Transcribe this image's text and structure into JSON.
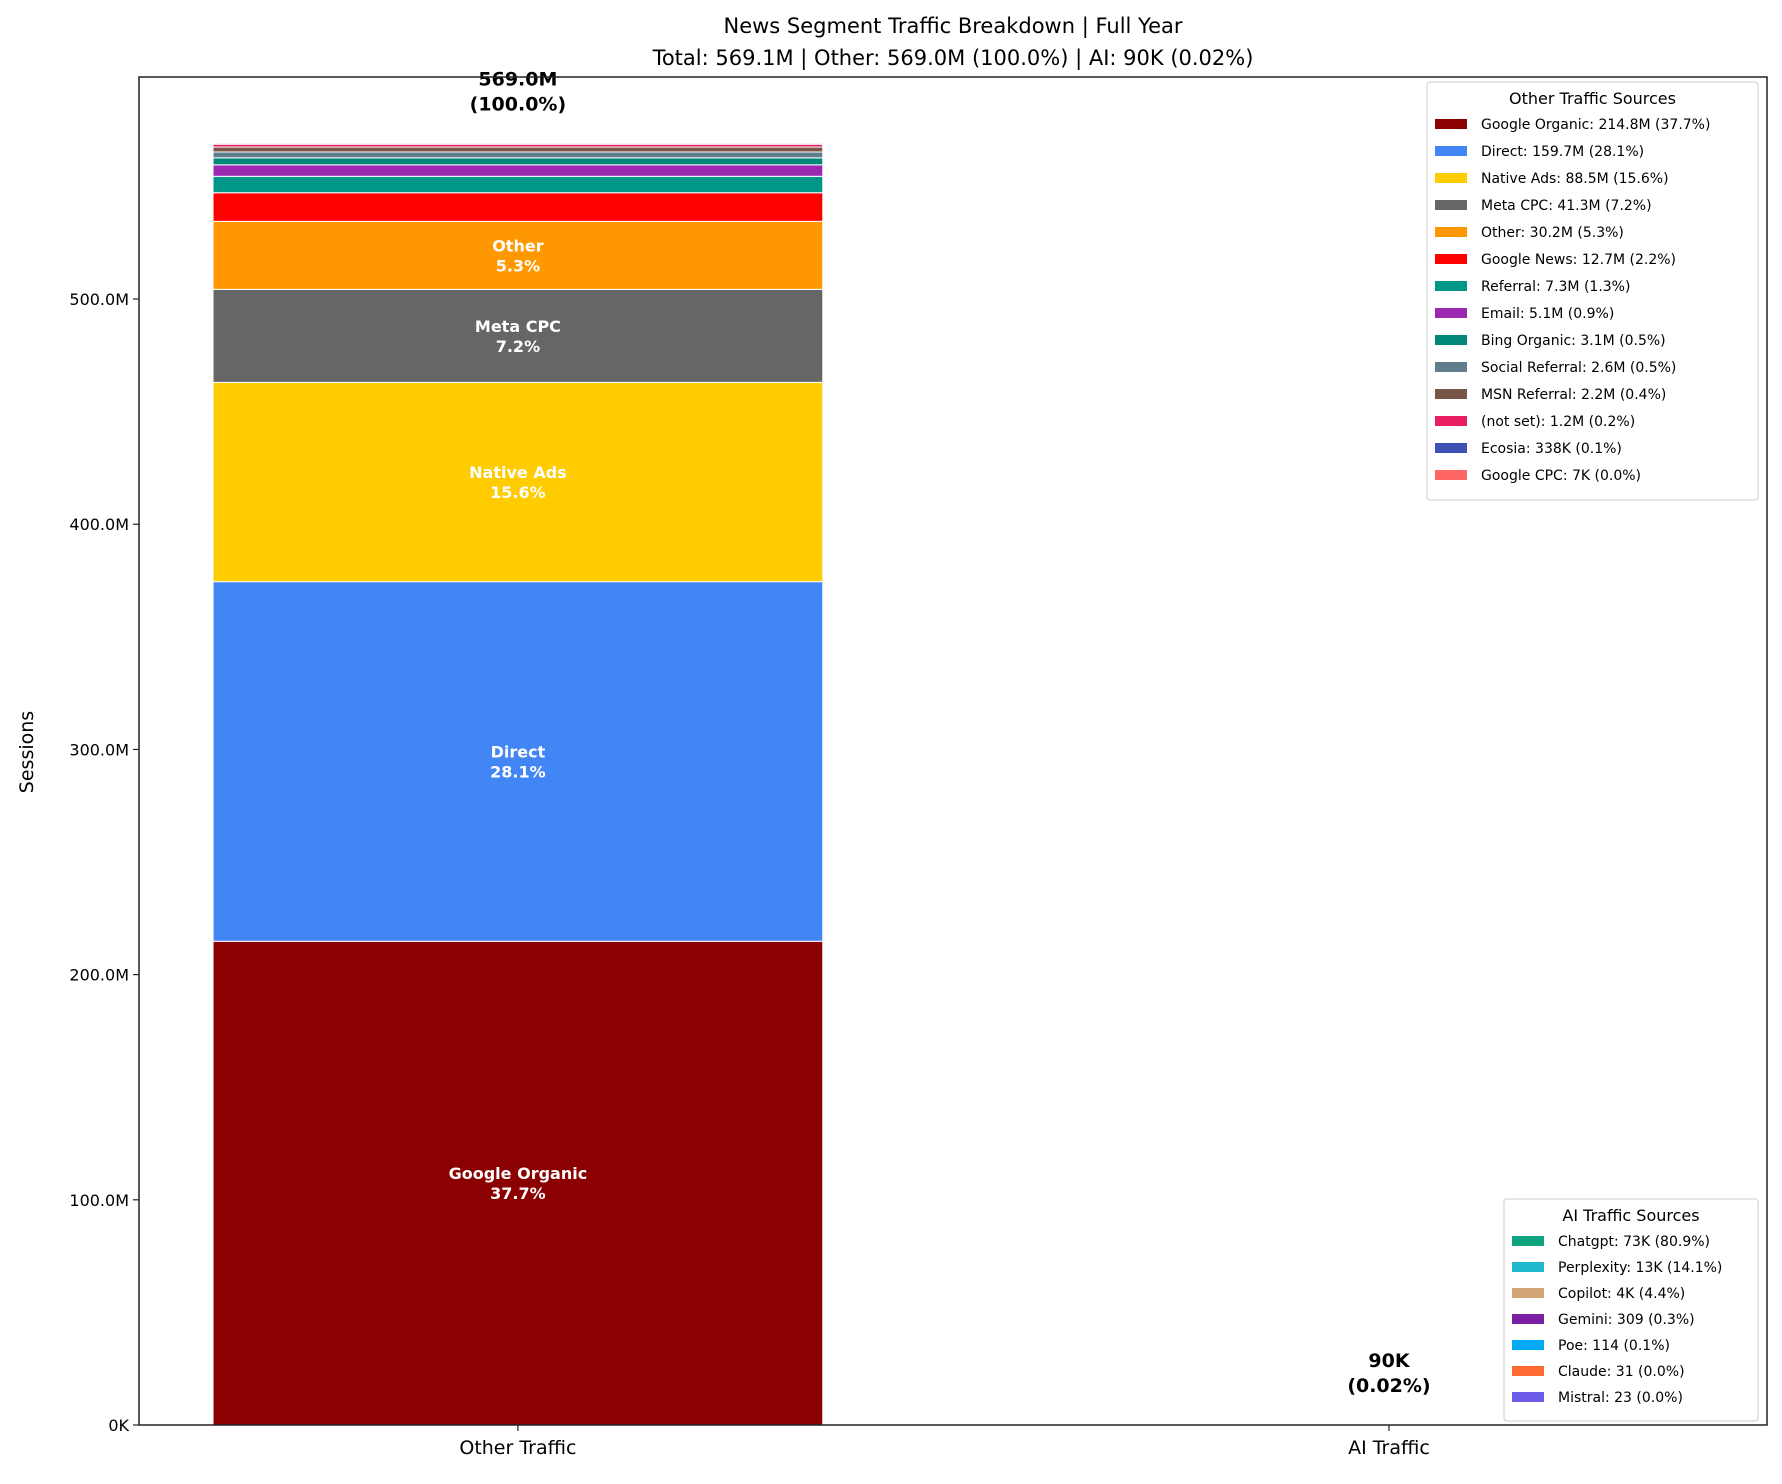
{
  "chart_data": {
    "type": "bar",
    "stacked": true,
    "title": "News Segment Traffic Breakdown | Full Year",
    "subtitle": "Total: 569.1M | Other: 569.0M (100.0%) | AI: 90K (0.02%)",
    "xlabel": "",
    "ylabel": "Sessions",
    "ylim": [
      0,
      598.6
    ],
    "yunit": "millions of sessions",
    "yticks": [
      0,
      100,
      200,
      300,
      400,
      500
    ],
    "ytick_labels": [
      "0K",
      "100.0M",
      "200.0M",
      "300.0M",
      "400.0M",
      "500.0M"
    ],
    "categories": [
      "Other Traffic",
      "AI Traffic"
    ],
    "grid": false,
    "bar_totals": [
      {
        "value_label": "569.0M",
        "pct_label": "(100.0%)"
      },
      {
        "value_label": "90K",
        "pct_label": "(0.02%)"
      }
    ],
    "other_series": [
      {
        "name": "Google Organic",
        "value": 214.8,
        "color": "#8B0000",
        "legend": "Google Organic: 214.8M (37.7%)",
        "bar_label": "Google Organic",
        "bar_pct": "37.7%"
      },
      {
        "name": "Direct",
        "value": 159.7,
        "color": "#4285F4",
        "legend": "Direct: 159.7M (28.1%)",
        "bar_label": "Direct",
        "bar_pct": "28.1%"
      },
      {
        "name": "Native Ads",
        "value": 88.5,
        "color": "#FFCC00",
        "legend": "Native Ads: 88.5M (15.6%)",
        "bar_label": "Native Ads",
        "bar_pct": "15.6%"
      },
      {
        "name": "Meta CPC",
        "value": 41.3,
        "color": "#666666",
        "legend": "Meta CPC: 41.3M (7.2%)",
        "bar_label": "Meta CPC",
        "bar_pct": "7.2%"
      },
      {
        "name": "Other",
        "value": 30.2,
        "color": "#FF9800",
        "legend": "Other: 30.2M (5.3%)",
        "bar_label": "Other",
        "bar_pct": "5.3%"
      },
      {
        "name": "Google News",
        "value": 12.7,
        "color": "#FF0000",
        "legend": "Google News: 12.7M (2.2%)"
      },
      {
        "name": "Referral",
        "value": 7.3,
        "color": "#009688",
        "legend": "Referral: 7.3M (1.3%)"
      },
      {
        "name": "Email",
        "value": 5.1,
        "color": "#9C27B0",
        "legend": "Email: 5.1M (0.9%)"
      },
      {
        "name": "Bing Organic",
        "value": 3.1,
        "color": "#00897B",
        "legend": "Bing Organic: 3.1M (0.5%)"
      },
      {
        "name": "Social Referral",
        "value": 2.6,
        "color": "#607D8B",
        "legend": "Social Referral: 2.6M (0.5%)"
      },
      {
        "name": "MSN Referral",
        "value": 2.2,
        "color": "#795548",
        "legend": "MSN Referral: 2.2M (0.4%)"
      },
      {
        "name": "(not set)",
        "value": 1.2,
        "color": "#E91E63",
        "legend": "(not set): 1.2M (0.2%)"
      },
      {
        "name": "Ecosia",
        "value": 0.338,
        "color": "#3F51B5",
        "legend": "Ecosia: 338K (0.1%)"
      },
      {
        "name": "Google CPC",
        "value": 0.007,
        "color": "#FF6666",
        "legend": "Google CPC: 7K (0.0%)"
      }
    ],
    "ai_series": [
      {
        "name": "Chatgpt",
        "value": 0.073,
        "color": "#10A37F",
        "legend": "Chatgpt: 73K (80.9%)"
      },
      {
        "name": "Perplexity",
        "value": 0.013,
        "color": "#20B8CD",
        "legend": "Perplexity: 13K (14.1%)"
      },
      {
        "name": "Copilot",
        "value": 0.004,
        "color": "#D4A574",
        "legend": "Copilot: 4K (4.4%)"
      },
      {
        "name": "Gemini",
        "value": 0.000309,
        "color": "#7B1FA2",
        "legend": "Gemini: 309 (0.3%)"
      },
      {
        "name": "Poe",
        "value": 0.000114,
        "color": "#03A9F4",
        "legend": "Poe: 114 (0.1%)"
      },
      {
        "name": "Claude",
        "value": 3.1e-05,
        "color": "#FF6B35",
        "legend": "Claude: 31 (0.0%)"
      },
      {
        "name": "Mistral",
        "value": 2.3e-05,
        "color": "#6C5CE7",
        "legend": "Mistral: 23 (0.0%)"
      }
    ],
    "legends": [
      {
        "title": "Other Traffic Sources",
        "placement": "upper-right"
      },
      {
        "title": "AI Traffic Sources",
        "placement": "lower-right"
      }
    ]
  }
}
